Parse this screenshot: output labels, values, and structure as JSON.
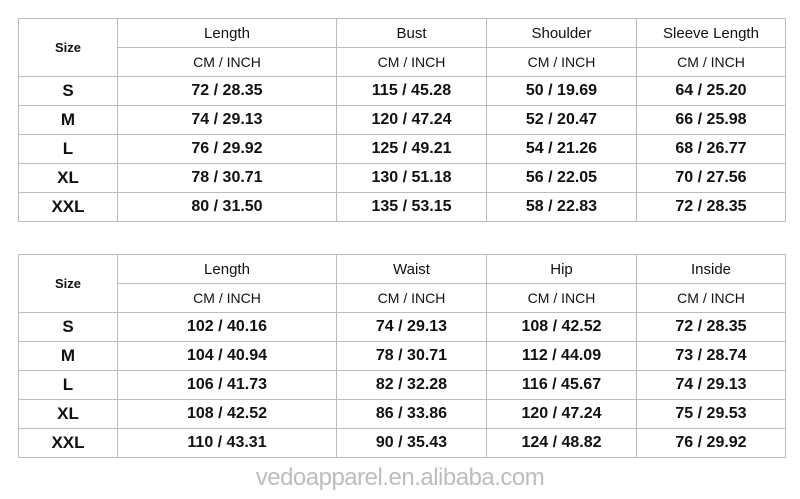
{
  "tables": [
    {
      "size_label": "Size",
      "columns": [
        "Length",
        "Bust",
        "Shoulder",
        "Sleeve Length"
      ],
      "unit": "CM  /  INCH",
      "rows": [
        {
          "size": "S",
          "values": [
            "72 / 28.35",
            "115 / 45.28",
            "50 / 19.69",
            "64 / 25.20"
          ]
        },
        {
          "size": "M",
          "values": [
            "74 / 29.13",
            "120 / 47.24",
            "52 / 20.47",
            "66 / 25.98"
          ]
        },
        {
          "size": "L",
          "values": [
            "76 / 29.92",
            "125 / 49.21",
            "54 / 21.26",
            "68 / 26.77"
          ]
        },
        {
          "size": "XL",
          "values": [
            "78 / 30.71",
            "130 / 51.18",
            "56 / 22.05",
            "70 / 27.56"
          ]
        },
        {
          "size": "XXL",
          "values": [
            "80 / 31.50",
            "135 / 53.15",
            "58 / 22.83",
            "72 / 28.35"
          ]
        }
      ]
    },
    {
      "size_label": "Size",
      "columns": [
        "Length",
        "Waist",
        "Hip",
        "Inside"
      ],
      "unit": "CM  /  INCH",
      "rows": [
        {
          "size": "S",
          "values": [
            "102 / 40.16",
            "74 / 29.13",
            "108 / 42.52",
            "72 / 28.35"
          ]
        },
        {
          "size": "M",
          "values": [
            "104 / 40.94",
            "78 / 30.71",
            "112 / 44.09",
            "73 / 28.74"
          ]
        },
        {
          "size": "L",
          "values": [
            "106 / 41.73",
            "82 / 32.28",
            "116 / 45.67",
            "74 / 29.13"
          ]
        },
        {
          "size": "XL",
          "values": [
            "108 / 42.52",
            "86 / 33.86",
            "120 / 47.24",
            "75 / 29.53"
          ]
        },
        {
          "size": "XXL",
          "values": [
            "110 / 43.31",
            "90 / 35.43",
            "124 / 48.82",
            "76 / 29.92"
          ]
        }
      ]
    }
  ],
  "watermark": "vedoapparel.en.alibaba.com"
}
